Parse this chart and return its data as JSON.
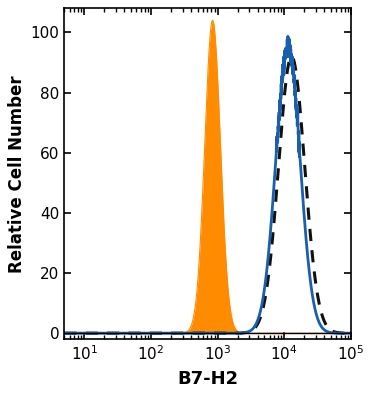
{
  "title": "",
  "xlabel": "B7-H2",
  "ylabel": "Relative Cell Number",
  "xlim_log": [
    5,
    100000
  ],
  "ylim": [
    -2,
    108
  ],
  "yticks": [
    0,
    20,
    40,
    60,
    80,
    100
  ],
  "orange_peak_x": 780,
  "orange_peak_y": 104,
  "orange_sigma": 0.27,
  "blue_peak_x": 9500,
  "blue_peak_y": 95,
  "blue_sigma": 0.42,
  "dotted_peak_x": 10500,
  "dotted_peak_y": 92,
  "dotted_sigma": 0.45,
  "orange_color": "#FF8C00",
  "blue_color": "#1A5FAD",
  "dotted_color": "#111111",
  "xlabel_fontsize": 13,
  "ylabel_fontsize": 12,
  "tick_fontsize": 11
}
